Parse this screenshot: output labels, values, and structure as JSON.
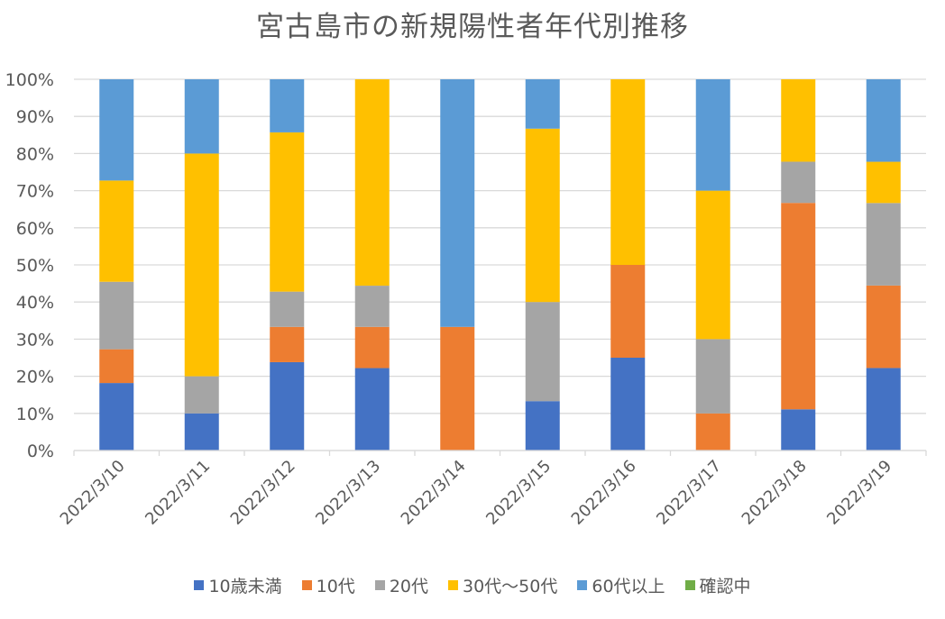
{
  "chart_data": {
    "type": "bar",
    "stacked": "percent",
    "title": "宮古島市の新規陽性者年代別推移",
    "xlabel": "",
    "ylabel": "",
    "ylim": [
      0,
      100
    ],
    "grid": true,
    "legend_position": "bottom",
    "yticks": [
      "0%",
      "10%",
      "20%",
      "30%",
      "40%",
      "50%",
      "60%",
      "70%",
      "80%",
      "90%",
      "100%"
    ],
    "categories": [
      "2022/3/10",
      "2022/3/11",
      "2022/3/12",
      "2022/3/13",
      "2022/3/14",
      "2022/3/15",
      "2022/3/16",
      "2022/3/17",
      "2022/3/18",
      "2022/3/19"
    ],
    "series": [
      {
        "name": "10歳未満",
        "color": "#4472C4",
        "values": [
          18.2,
          10,
          23.8,
          22.2,
          0,
          13.3,
          25,
          0,
          11.1,
          22.2
        ]
      },
      {
        "name": "10代",
        "color": "#ED7D31",
        "values": [
          9.1,
          0,
          9.5,
          11.1,
          33.3,
          0,
          25,
          10,
          55.6,
          22.2
        ]
      },
      {
        "name": "20代",
        "color": "#A5A5A5",
        "values": [
          18.2,
          10,
          9.5,
          11.1,
          0,
          26.7,
          0,
          20,
          11.1,
          22.2
        ]
      },
      {
        "name": "30代～50代",
        "color": "#FFC000",
        "values": [
          27.3,
          60,
          42.9,
          55.6,
          0,
          46.7,
          50,
          40,
          22.2,
          11.1
        ]
      },
      {
        "name": "60代以上",
        "color": "#5B9BD5",
        "values": [
          27.3,
          20,
          14.3,
          0,
          66.7,
          13.3,
          0,
          30,
          0,
          22.2
        ]
      },
      {
        "name": "確認中",
        "color": "#70AD47",
        "values": [
          0,
          0,
          0,
          0,
          0,
          0,
          0,
          0,
          0,
          0
        ]
      }
    ]
  }
}
